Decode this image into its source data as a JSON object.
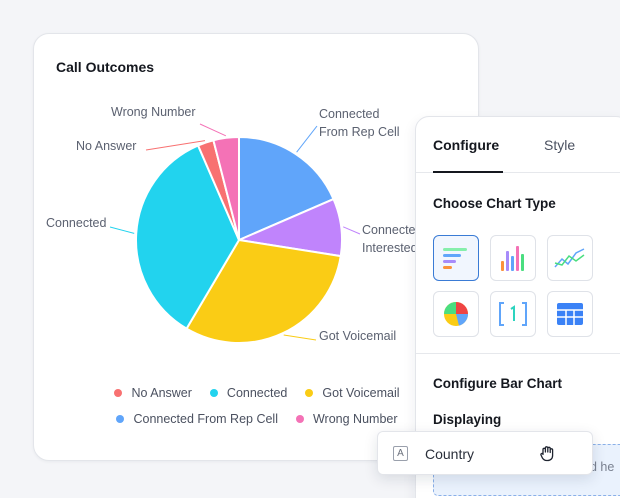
{
  "chart_card": {
    "title": "Call Outcomes"
  },
  "chart_data": {
    "type": "pie",
    "title": "Call Outcomes",
    "slices": [
      {
        "name": "Connected From Rep Cell",
        "value": 18.5,
        "color": "#60a5fa",
        "label": "Connected\nFrom Rep Cell"
      },
      {
        "name": "Connected Interested",
        "value": 9,
        "color": "#c084fc",
        "label": "Connected\nInterested"
      },
      {
        "name": "Got Voicemail",
        "value": 31,
        "color": "#facc15",
        "label": "Got Voicemail"
      },
      {
        "name": "Connected",
        "value": 35,
        "color": "#22d3ee",
        "label": "Connected"
      },
      {
        "name": "No Answer",
        "value": 2.5,
        "color": "#f87171",
        "label": "No Answer"
      },
      {
        "name": "Wrong Number",
        "value": 4,
        "color": "#f472b6",
        "label": "Wrong Number"
      }
    ],
    "legend": {
      "rows": [
        [
          {
            "label": "No Answer",
            "color": "#f87171"
          },
          {
            "label": "Connected",
            "color": "#22d3ee"
          },
          {
            "label": "Got Voicemail",
            "color": "#facc15"
          }
        ],
        [
          {
            "label": "Connected From Rep Cell",
            "color": "#60a5fa"
          },
          {
            "label": "Wrong Number",
            "color": "#f472b6"
          }
        ]
      ],
      "placement": "bottom"
    }
  },
  "config_panel": {
    "tabs": [
      {
        "label": "Configure",
        "active": true
      },
      {
        "label": "Style",
        "active": false
      }
    ],
    "choose_chart_type_title": "Choose Chart Type",
    "chart_types": [
      {
        "icon": "horizontal-bar-chart-icon",
        "selected": true
      },
      {
        "icon": "vertical-bar-chart-icon",
        "selected": false
      },
      {
        "icon": "line-chart-icon",
        "selected": false
      },
      {
        "icon": "pie-chart-icon",
        "selected": false
      },
      {
        "icon": "number-metric-icon",
        "selected": false
      },
      {
        "icon": "table-icon",
        "selected": false
      }
    ],
    "configure_bar_title": "Configure Bar Chart",
    "displaying_label": "Displaying",
    "drop_zone_text": "d he"
  },
  "drag_chip": {
    "type_icon_text": "A",
    "label": "Country",
    "cursor_icon": "grab-hand-icon"
  }
}
